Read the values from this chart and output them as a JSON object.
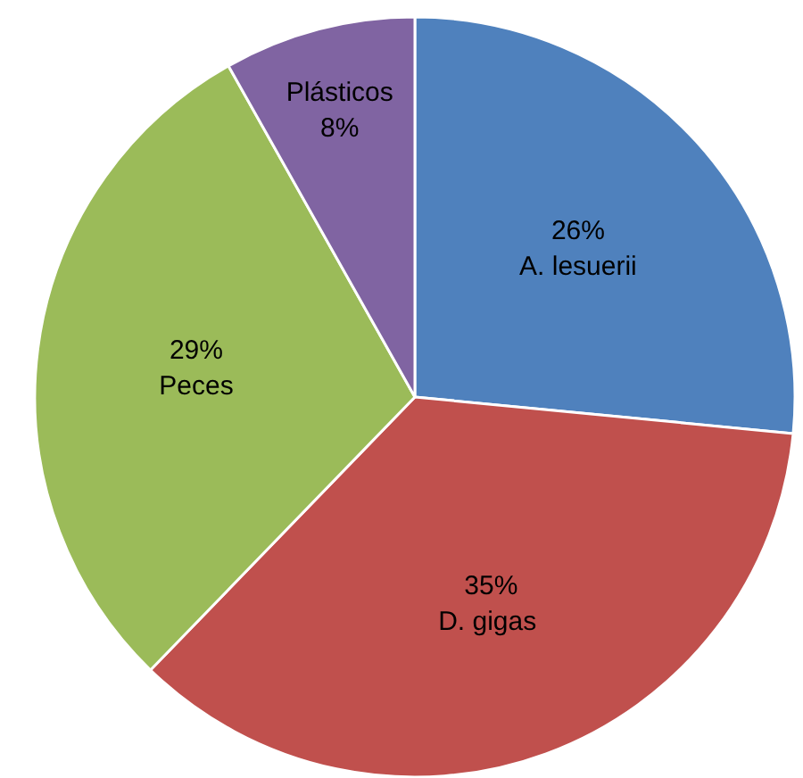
{
  "chart_data": {
    "type": "pie",
    "categories": [
      "A. lesuerii",
      "D.  gigas",
      "Peces",
      "Plásticos"
    ],
    "values": [
      26,
      35,
      29,
      8
    ],
    "colors": [
      "#4f81bd",
      "#c0504d",
      "#9bbb59",
      "#8064a2"
    ],
    "value_labels": [
      "26%",
      "35%",
      "29%",
      "8%"
    ]
  }
}
